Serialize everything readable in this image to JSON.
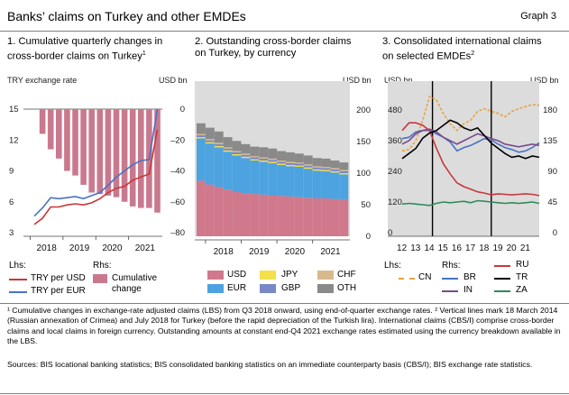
{
  "header": {
    "title": "Banks’ claims on Turkey and other EMDEs",
    "graph_no": "Graph 3"
  },
  "panels": [
    {
      "title_l1": "1. Cumulative quarterly changes in",
      "title_l2": "cross-border claims on Turkey",
      "sup": "1",
      "left_unit": "TRY exchange rate",
      "right_unit": "USD bn"
    },
    {
      "title_l1": "2. Outstanding cross-border claims",
      "title_l2": "on Turkey, by currency",
      "sup": "",
      "right_unit": "USD bn"
    },
    {
      "title_l1": "3. Consolidated international claims",
      "title_l2": "on selected EMDEs",
      "sup": "2",
      "left_unit": "USD bn",
      "right_unit": "USD bn"
    }
  ],
  "legends": {
    "p1": {
      "lhs": "Lhs:",
      "rhs": "Rhs:",
      "usd": "TRY per USD",
      "eur": "TRY per EUR",
      "cum": "Cumulative",
      "cum2": "change"
    },
    "p2": {
      "usd": "USD",
      "eur": "EUR",
      "jpy": "JPY",
      "gbp": "GBP",
      "chf": "CHF",
      "oth": "OTH"
    },
    "p3": {
      "lhs": "Lhs:",
      "rhs": "Rhs:",
      "cn": "CN",
      "br": "BR",
      "in": "IN",
      "ru": "RU",
      "tr": "TR",
      "za": "ZA"
    }
  },
  "colors": {
    "bar_pink": "#c9798e",
    "usd_red": "#c8373c",
    "eur_blue": "#4a72c4",
    "s_usd": "#d0788c",
    "s_eur": "#4da3df",
    "s_jpy": "#f3e04a",
    "s_gbp": "#7a88c8",
    "s_chf": "#d8b98d",
    "s_oth": "#8a8a8a",
    "cn": "#eaa23a",
    "br": "#4a72c4",
    "in": "#7a4a8a",
    "ru": "#c8373c",
    "tr": "#000000",
    "za": "#2e8b57",
    "bg": "#dcdcdc"
  },
  "chart_data": [
    {
      "type": "bar",
      "title": "1. Cumulative quarterly changes in cross-border claims on Turkey",
      "x_ticks": [
        "2018",
        "2019",
        "2020",
        "2021"
      ],
      "quarters": [
        "2018Q1",
        "2018Q2",
        "2018Q3",
        "2018Q4",
        "2019Q1",
        "2019Q2",
        "2019Q3",
        "2019Q4",
        "2020Q1",
        "2020Q2",
        "2020Q3",
        "2020Q4",
        "2021Q1",
        "2021Q2",
        "2021Q3",
        "2021Q4"
      ],
      "series": [
        {
          "name": "Cumulative change",
          "axis": "rhs",
          "type": "bar",
          "values": [
            0,
            -16,
            -26,
            -32,
            -40,
            -43,
            -49,
            -54,
            -55,
            -56,
            -57,
            -60,
            -63,
            -64,
            -64,
            -67
          ]
        },
        {
          "name": "TRY per USD",
          "axis": "lhs",
          "type": "line",
          "values": [
            3.8,
            4.4,
            5.5,
            5.5,
            5.7,
            5.8,
            5.7,
            5.9,
            6.3,
            6.9,
            7.3,
            7.5,
            8.1,
            8.4,
            8.7,
            13.0
          ]
        },
        {
          "name": "TRY per EUR",
          "axis": "lhs",
          "type": "line",
          "values": [
            4.6,
            5.4,
            6.4,
            6.3,
            6.4,
            6.5,
            6.3,
            6.6,
            6.9,
            7.6,
            8.4,
            9.0,
            9.6,
            10.0,
            10.1,
            15.0
          ]
        }
      ],
      "y_left": {
        "ticks": [
          3,
          6,
          9,
          12,
          15
        ],
        "range": [
          3,
          15
        ]
      },
      "y_right": {
        "ticks": [
          0,
          -20,
          -40,
          -60,
          -80
        ],
        "range": [
          -80,
          0
        ]
      }
    },
    {
      "type": "bar",
      "stacked": true,
      "title": "2. Outstanding cross-border claims on Turkey, by currency",
      "x_ticks": [
        "2018",
        "2019",
        "2020",
        "2021"
      ],
      "quarters": [
        "2017Q4",
        "2018Q1",
        "2018Q2",
        "2018Q3",
        "2018Q4",
        "2019Q1",
        "2019Q2",
        "2019Q3",
        "2019Q4",
        "2020Q1",
        "2020Q2",
        "2020Q3",
        "2020Q4",
        "2021Q1",
        "2021Q2",
        "2021Q3",
        "2021Q4"
      ],
      "series": [
        {
          "name": "USD",
          "values": [
            88,
            82,
            78,
            74,
            70,
            68,
            67,
            66,
            65,
            64,
            63,
            62,
            61,
            60,
            60,
            59,
            58
          ]
        },
        {
          "name": "EUR",
          "values": [
            67,
            65,
            63,
            60,
            58,
            56,
            53,
            52,
            51,
            49,
            48,
            48,
            46,
            44,
            43,
            42,
            40
          ]
        },
        {
          "name": "JPY",
          "values": [
            2,
            2,
            2,
            2,
            2,
            2,
            2,
            2,
            2,
            2,
            2,
            2,
            2,
            2,
            2,
            2,
            2
          ]
        },
        {
          "name": "GBP",
          "values": [
            3,
            3,
            3,
            3,
            3,
            3,
            3,
            3,
            3,
            3,
            3,
            3,
            3,
            3,
            3,
            3,
            3
          ]
        },
        {
          "name": "CHF",
          "values": [
            2,
            2,
            2,
            2,
            2,
            2,
            2,
            2,
            2,
            2,
            2,
            2,
            2,
            2,
            2,
            2,
            2
          ]
        },
        {
          "name": "OTH",
          "values": [
            17,
            18,
            18,
            16,
            16,
            15,
            15,
            16,
            16,
            15,
            15,
            14,
            14,
            13,
            13,
            12,
            12
          ]
        }
      ],
      "y_right": {
        "ticks": [
          0,
          50,
          100,
          150,
          200
        ],
        "range": [
          0,
          200
        ]
      }
    },
    {
      "type": "line",
      "title": "3. Consolidated international claims on selected EMDEs",
      "x_ticks": [
        "12",
        "13",
        "14",
        "15",
        "16",
        "17",
        "18",
        "19",
        "20",
        "21"
      ],
      "x": [
        2012.0,
        2012.5,
        2013.0,
        2013.5,
        2014.0,
        2014.5,
        2015.0,
        2015.5,
        2016.0,
        2016.5,
        2017.0,
        2017.5,
        2018.0,
        2018.5,
        2019.0,
        2019.5,
        2020.0,
        2020.5,
        2021.0,
        2021.5,
        2022.0
      ],
      "vlines": [
        2014.21,
        2018.5
      ],
      "series": [
        {
          "name": "CN",
          "axis": "rhs",
          "dashed": true,
          "values": [
            120,
            122,
            135,
            165,
            200,
            195,
            175,
            160,
            150,
            160,
            165,
            178,
            182,
            178,
            175,
            170,
            178,
            182,
            185,
            188,
            187
          ]
        },
        {
          "name": "BR",
          "axis": "rhs",
          "values": [
            138,
            140,
            148,
            150,
            150,
            145,
            140,
            133,
            120,
            125,
            128,
            133,
            138,
            136,
            130,
            125,
            122,
            118,
            120,
            125,
            132
          ]
        },
        {
          "name": "IN",
          "axis": "rhs",
          "values": [
            130,
            135,
            145,
            150,
            152,
            148,
            140,
            135,
            130,
            135,
            140,
            145,
            142,
            138,
            135,
            130,
            128,
            126,
            128,
            130,
            128
          ]
        },
        {
          "name": "RU",
          "axis": "lhs",
          "values": [
            400,
            430,
            430,
            420,
            400,
            330,
            270,
            230,
            195,
            180,
            170,
            160,
            155,
            148,
            152,
            150,
            148,
            150,
            152,
            150,
            145
          ]
        },
        {
          "name": "TR",
          "axis": "lhs",
          "values": [
            290,
            310,
            330,
            370,
            390,
            400,
            420,
            440,
            430,
            410,
            400,
            410,
            380,
            350,
            330,
            310,
            295,
            300,
            290,
            300,
            295
          ]
        },
        {
          "name": "ZA",
          "axis": "rhs",
          "values": [
            42,
            43,
            42,
            41,
            40,
            43,
            45,
            44,
            45,
            46,
            44,
            47,
            46,
            45,
            44,
            43,
            44,
            43,
            44,
            45,
            43
          ]
        }
      ],
      "y_left": {
        "ticks": [
          0,
          120,
          240,
          360,
          480
        ],
        "range": [
          0,
          560
        ]
      },
      "y_right": {
        "ticks": [
          0,
          45,
          90,
          135,
          180
        ],
        "range": [
          0,
          210
        ]
      }
    }
  ],
  "footnotes": {
    "f1": "¹ Cumulative changes in exchange-rate adjusted claims (LBS) from Q3 2018 onward, using end-of-quarter exchange rates.  ² Vertical lines mark 18 March 2014 (Russian annexation of Crimea) and July 2018 for Turkey (before the rapid depreciation of the Turkish lira). International claims (CBS/I) comprise cross-border claims and local claims in foreign currency. Outstanding amounts at constant end-Q4 2021 exchange rates estimated using the currency breakdown available in the LBS.",
    "sources": "Sources: BIS locational banking statistics; BIS consolidated banking statistics on an immediate counterparty basis (CBS/I); BIS exchange rate statistics."
  }
}
